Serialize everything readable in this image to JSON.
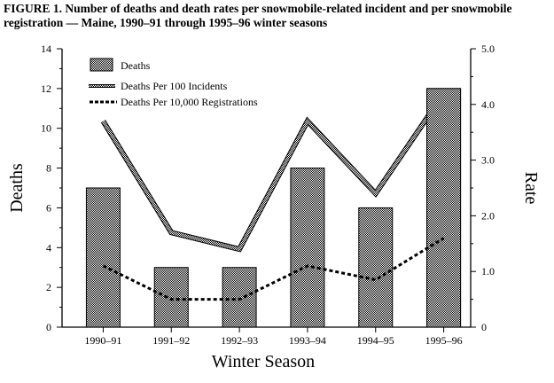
{
  "chart_data": {
    "type": "bar",
    "title": "FIGURE 1. Number of deaths and death rates per snowmobile-related incident and per snowmobile registration — Maine, 1990–91 through 1995–96 winter seasons",
    "xlabel": "Winter Season",
    "ylabel": "Deaths",
    "ylabel_right": "Rate",
    "ylim": [
      0,
      14
    ],
    "ylim_right": [
      0,
      5.0
    ],
    "yticks": [
      "0",
      "2",
      "4",
      "6",
      "8",
      "10",
      "12",
      "14"
    ],
    "yticks_right": [
      "0",
      "1.0",
      "2.0",
      "3.0",
      "4.0",
      "5.0"
    ],
    "categories": [
      "1990–91",
      "1991–92",
      "1992–93",
      "1993–94",
      "1994–95",
      "1995–96"
    ],
    "legend_position": "top-left",
    "grid": false,
    "series": [
      {
        "name": "Deaths",
        "type": "bar",
        "axis": "left",
        "values": [
          7,
          3,
          3,
          8,
          6,
          12
        ]
      },
      {
        "name": "Deaths Per 100 Incidents",
        "type": "line",
        "style": "thick-patterned",
        "axis": "right",
        "values": [
          3.7,
          1.7,
          1.4,
          3.7,
          2.4,
          4.2
        ]
      },
      {
        "name": "Deaths Per 10,000 Registrations",
        "type": "line",
        "style": "dotted",
        "axis": "right",
        "values": [
          1.1,
          0.5,
          0.5,
          1.1,
          0.85,
          1.6
        ]
      }
    ],
    "colors": {
      "bar_fill": "#8c8c8c",
      "line": "#000000"
    }
  }
}
